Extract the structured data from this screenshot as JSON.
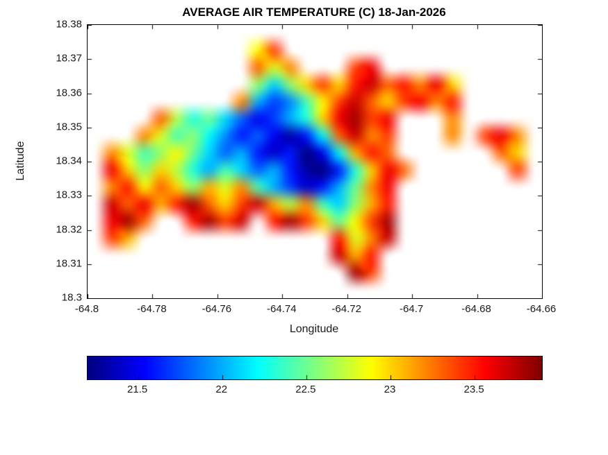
{
  "chart_data": {
    "type": "heatmap",
    "title": "AVERAGE AIR TEMPERATURE (C) 18-Jan-2026",
    "xlabel": "Longitude",
    "ylabel": "Latitude",
    "xlim": [
      -64.8,
      -64.66
    ],
    "ylim": [
      18.3,
      18.38
    ],
    "x_ticks": [
      -64.8,
      -64.78,
      -64.76,
      -64.74,
      -64.72,
      -64.7,
      -64.68,
      -64.66
    ],
    "x_tick_labels": [
      "-64.8",
      "-64.78",
      "-64.76",
      "-64.74",
      "-64.72",
      "-64.7",
      "-64.68",
      "-64.66"
    ],
    "y_ticks": [
      18.3,
      18.31,
      18.32,
      18.33,
      18.34,
      18.35,
      18.36,
      18.37,
      18.38
    ],
    "y_tick_labels": [
      "18.3",
      "18.31",
      "18.32",
      "18.33",
      "18.34",
      "18.35",
      "18.36",
      "18.37",
      "18.38"
    ],
    "grid_lines": "off",
    "colormap": "jet",
    "colorbar": {
      "orientation": "horizontal",
      "min": 21.2,
      "max": 23.9,
      "ticks": [
        21.5,
        22,
        22.5,
        23,
        23.5
      ],
      "tick_labels": [
        "21.5",
        "22",
        "22.5",
        "23",
        "23.5"
      ],
      "units": "degC"
    },
    "grid": {
      "description": "Approximate 28x16 temperature grid over the island; rows north (lat 18.38) to south (lat 18.3), cols west (lon -64.8) to east (lon -64.66); null = water/no data",
      "cols": 28,
      "rows": 16,
      "lon_edges": [
        -64.8,
        -64.66
      ],
      "lat_edges": [
        18.38,
        18.3
      ],
      "values_units": "degC",
      "values": [
        [
          null,
          null,
          null,
          null,
          null,
          null,
          null,
          null,
          null,
          null,
          null,
          null,
          null,
          null,
          null,
          null,
          null,
          null,
          null,
          null,
          null,
          null,
          null,
          null,
          null,
          null,
          null,
          null
        ],
        [
          null,
          null,
          null,
          null,
          null,
          null,
          null,
          null,
          null,
          null,
          22.9,
          23.4,
          null,
          null,
          null,
          null,
          null,
          null,
          null,
          null,
          null,
          null,
          null,
          null,
          null,
          null,
          null,
          null
        ],
        [
          null,
          null,
          null,
          null,
          null,
          null,
          null,
          null,
          null,
          null,
          23.3,
          22.8,
          23.2,
          null,
          null,
          null,
          23.4,
          23.6,
          null,
          null,
          null,
          null,
          null,
          null,
          null,
          null,
          null,
          null
        ],
        [
          null,
          null,
          null,
          null,
          null,
          null,
          null,
          null,
          null,
          null,
          22.6,
          22.1,
          22.6,
          23.0,
          23.4,
          23.0,
          23.5,
          23.7,
          23.3,
          23.5,
          23.2,
          23.6,
          23.0,
          null,
          null,
          null,
          null,
          null
        ],
        [
          null,
          null,
          null,
          null,
          null,
          null,
          null,
          null,
          null,
          23.2,
          22.0,
          21.7,
          21.9,
          22.4,
          22.9,
          23.4,
          23.7,
          23.3,
          23.0,
          23.4,
          23.6,
          23.2,
          23.5,
          null,
          null,
          null,
          null,
          null
        ],
        [
          null,
          null,
          null,
          null,
          23.3,
          22.7,
          22.3,
          22.5,
          22.1,
          21.8,
          21.5,
          21.7,
          22.0,
          22.3,
          23.0,
          23.6,
          23.8,
          23.4,
          23.6,
          null,
          null,
          null,
          23.2,
          null,
          null,
          null,
          null,
          null
        ],
        [
          null,
          null,
          null,
          23.2,
          22.8,
          22.4,
          22.6,
          22.2,
          21.9,
          21.6,
          21.8,
          21.5,
          21.3,
          21.6,
          22.2,
          23.3,
          23.7,
          23.2,
          23.4,
          null,
          null,
          null,
          23.2,
          null,
          23.4,
          23.6,
          23.2,
          null
        ],
        [
          null,
          23.2,
          22.8,
          22.4,
          22.6,
          22.9,
          22.5,
          22.1,
          21.8,
          22.0,
          21.6,
          21.4,
          21.6,
          21.2,
          21.5,
          22.2,
          23.1,
          23.5,
          23.3,
          null,
          null,
          null,
          null,
          null,
          null,
          23.3,
          23.0,
          null
        ],
        [
          null,
          23.6,
          23.0,
          22.6,
          23.0,
          22.7,
          22.3,
          22.0,
          22.4,
          22.1,
          21.8,
          22.0,
          21.6,
          21.3,
          21.2,
          21.6,
          22.3,
          23.0,
          23.6,
          23.3,
          null,
          null,
          null,
          null,
          null,
          null,
          23.4,
          null
        ],
        [
          null,
          23.2,
          23.5,
          22.9,
          23.3,
          23.0,
          22.6,
          23.1,
          22.8,
          23.2,
          22.4,
          22.0,
          21.7,
          21.4,
          21.6,
          22.0,
          22.5,
          23.2,
          23.6,
          null,
          null,
          null,
          null,
          null,
          null,
          null,
          null,
          null
        ],
        [
          null,
          23.7,
          23.3,
          23.6,
          23.1,
          23.5,
          23.8,
          23.3,
          23.0,
          23.4,
          23.7,
          23.1,
          22.7,
          23.2,
          22.4,
          22.1,
          22.6,
          23.1,
          23.5,
          null,
          null,
          null,
          null,
          null,
          null,
          null,
          null,
          null
        ],
        [
          null,
          23.6,
          23.8,
          23.3,
          null,
          null,
          23.5,
          23.8,
          23.4,
          23.7,
          null,
          23.5,
          23.8,
          23.4,
          23.0,
          22.5,
          22.9,
          23.4,
          23.8,
          null,
          null,
          null,
          null,
          null,
          null,
          null,
          null,
          null
        ],
        [
          null,
          23.4,
          23.1,
          null,
          null,
          null,
          null,
          null,
          null,
          null,
          null,
          null,
          null,
          null,
          null,
          23.5,
          22.8,
          23.2,
          23.7,
          null,
          null,
          null,
          null,
          null,
          null,
          null,
          null,
          null
        ],
        [
          null,
          null,
          null,
          null,
          null,
          null,
          null,
          null,
          null,
          null,
          null,
          null,
          null,
          null,
          null,
          23.7,
          23.1,
          23.5,
          null,
          null,
          null,
          null,
          null,
          null,
          null,
          null,
          null,
          null
        ],
        [
          null,
          null,
          null,
          null,
          null,
          null,
          null,
          null,
          null,
          null,
          null,
          null,
          null,
          null,
          null,
          null,
          23.8,
          23.4,
          null,
          null,
          null,
          null,
          null,
          null,
          null,
          null,
          null,
          null
        ],
        [
          null,
          null,
          null,
          null,
          null,
          null,
          null,
          null,
          null,
          null,
          null,
          null,
          null,
          null,
          null,
          null,
          null,
          null,
          null,
          null,
          null,
          null,
          null,
          null,
          null,
          null,
          null,
          null
        ]
      ]
    }
  }
}
